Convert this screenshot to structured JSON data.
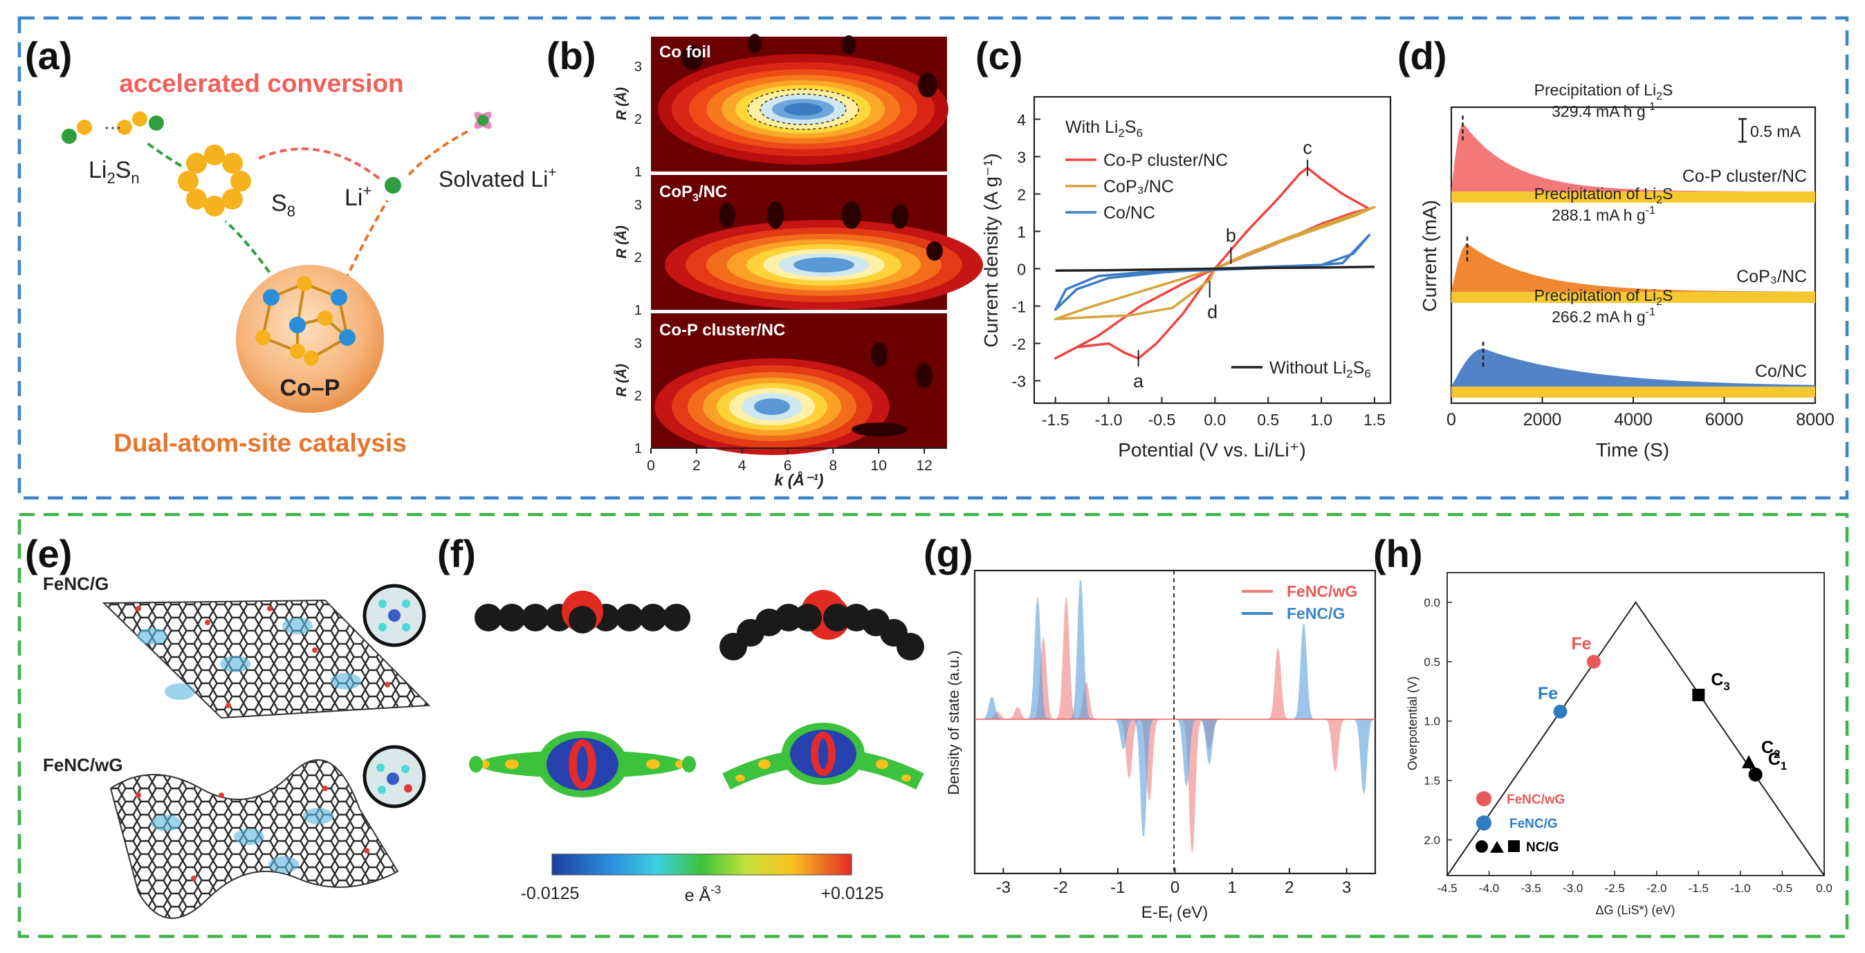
{
  "panel_labels": {
    "a": "(a)",
    "b": "(b)",
    "c": "(c)",
    "d": "(d)",
    "e": "(e)",
    "f": "(f)",
    "g": "(g)",
    "h": "(h)"
  },
  "panel_a": {
    "accelerated": "accelerated conversion",
    "li2sn_main": "Li",
    "li2sn_sub1": "2",
    "li2sn_mid": "S",
    "li2sn_sub2": "n",
    "s8_main": "S",
    "s8_sub": "8",
    "li_main": "Li",
    "li_sup": "+",
    "solvated_main": "Solvated Li",
    "solvated_sup": "+",
    "cop": "Co–P",
    "dual": "Dual-atom-site catalysis",
    "colors": {
      "red": "#f0605a",
      "orange": "#e8742c",
      "ball": "#f5b21c",
      "green": "#2e9e3e"
    }
  },
  "panel_b": {
    "sub1_label": "Co foil",
    "sub2_main": "CoP",
    "sub2_sub": "3",
    "sub2_tail": "/NC",
    "sub3_label": "Co-P cluster/NC",
    "ylabel": "R (Å)",
    "xlabel": "k (Å⁻¹)",
    "yticks": [
      "1",
      "2",
      "3"
    ],
    "xticks": [
      "0",
      "2",
      "4",
      "6",
      "8",
      "10",
      "12"
    ]
  },
  "chart_data": [
    {
      "panel": "c",
      "type": "line",
      "title_main": "With Li",
      "title_sub": "2",
      "title_tail": "S",
      "title_sub2": "6",
      "xlabel": "Potential (V vs. Li/Li⁺)",
      "ylabel": "Current density (A g⁻¹)",
      "xlim": [
        -1.7,
        1.65
      ],
      "ylim": [
        -3.6,
        4.6
      ],
      "xticks": [
        "-1.5",
        "-1.0",
        "-0.5",
        "0.0",
        "0.5",
        "1.0",
        "1.5"
      ],
      "yticks": [
        "-3",
        "-2",
        "-1",
        "0",
        "1",
        "2",
        "3",
        "4"
      ],
      "series": [
        {
          "name": "Co-P cluster/NC",
          "color": "#ee4540",
          "x": [
            -1.5,
            -1.3,
            -1.0,
            -0.85,
            -0.72,
            -0.55,
            -0.3,
            0.0,
            0.3,
            0.6,
            0.8,
            0.87,
            1.0,
            1.2,
            1.45,
            1.3,
            1.0,
            0.6,
            0.3,
            0.0,
            -0.3,
            -0.7,
            -1.1,
            -1.5
          ],
          "y": [
            -2.4,
            -2.1,
            -2.0,
            -2.25,
            -2.4,
            -2.0,
            -1.2,
            0.0,
            1.0,
            1.9,
            2.55,
            2.7,
            2.4,
            2.0,
            1.6,
            1.5,
            1.2,
            0.7,
            0.35,
            0.0,
            -0.4,
            -1.0,
            -1.8,
            -2.4
          ]
        },
        {
          "name": "CoP₃/NC",
          "color": "#d8a33a",
          "x": [
            -1.5,
            -1.2,
            -0.8,
            -0.4,
            -0.05,
            0.0,
            0.3,
            0.7,
            1.1,
            1.5,
            1.3,
            0.9,
            0.5,
            0.0,
            -0.4,
            -0.8,
            -1.2,
            -1.5
          ],
          "y": [
            -1.35,
            -1.3,
            -1.25,
            -1.05,
            -0.3,
            0.0,
            0.4,
            0.85,
            1.25,
            1.65,
            1.4,
            1.0,
            0.6,
            0.0,
            -0.35,
            -0.7,
            -1.05,
            -1.35
          ]
        },
        {
          "name": "Co/NC",
          "color": "#3a7cc4",
          "x": [
            -1.5,
            -1.3,
            -1.0,
            -0.5,
            0.0,
            0.5,
            1.0,
            1.3,
            1.45,
            1.2,
            0.8,
            0.3,
            -0.2,
            -0.7,
            -1.1,
            -1.4,
            -1.5
          ],
          "y": [
            -1.1,
            -0.55,
            -0.25,
            -0.1,
            0.0,
            0.05,
            0.1,
            0.4,
            0.9,
            0.15,
            0.05,
            0.0,
            -0.05,
            -0.1,
            -0.2,
            -0.55,
            -1.1
          ]
        },
        {
          "name": "Without Li₂S₆",
          "color": "#222222",
          "x": [
            -1.5,
            -1.0,
            -0.5,
            0.0,
            0.5,
            1.0,
            1.5
          ],
          "y": [
            -0.05,
            -0.04,
            -0.02,
            0.0,
            0.02,
            0.03,
            0.05
          ]
        }
      ],
      "legend": [
        "Co-P cluster/NC",
        "CoP₃/NC",
        "Co/NC"
      ],
      "legend2_main": "Without Li",
      "legend2_sub": "2",
      "legend2_mid": "S",
      "legend2_sub2": "6",
      "annotations": [
        {
          "text": "a",
          "x": -0.72,
          "y": -2.4
        },
        {
          "text": "b",
          "x": 0.15,
          "y": 0.35
        },
        {
          "text": "c",
          "x": 0.87,
          "y": 2.7
        },
        {
          "text": "d",
          "x": -0.05,
          "y": -0.55
        }
      ]
    },
    {
      "panel": "d",
      "type": "area",
      "xlabel": "Time (S)",
      "ylabel": "Current (mA)",
      "xlim": [
        0,
        8000
      ],
      "xticks": [
        "0",
        "2000",
        "4000",
        "6000",
        "8000"
      ],
      "scalebar": "0.5 mA",
      "series": [
        {
          "name": "Co-P cluster/NC",
          "color": "#f26a6a",
          "peak_time": 250,
          "capacity_main": "329.4 mA h g",
          "capacity_sup": "-1",
          "title_main": "Precipitation of Li",
          "title_sub": "2",
          "title_tail": "S"
        },
        {
          "name": "CoP₃/NC",
          "color": "#f07a1c",
          "peak_time": 350,
          "capacity_main": "288.1 mA h g",
          "capacity_sup": "-1",
          "title_main": "Precipitation of Li",
          "title_sub": "2",
          "title_tail": "S"
        },
        {
          "name": "Co/NC",
          "color": "#3f76c0",
          "peak_time": 700,
          "capacity_main": "266.2 mA h g",
          "capacity_sup": "-1",
          "title_main": "Precipitation of Li",
          "title_sub": "2",
          "title_tail": "S"
        }
      ],
      "baseline_color": "#f5c832"
    },
    {
      "panel": "g",
      "type": "area",
      "xlabel": "E-E",
      "xlabel_sub": "f",
      "xlabel_tail": " (eV)",
      "ylabel": "Density of state (a.u.)",
      "xlim": [
        -3.5,
        3.5
      ],
      "xticks": [
        "-3",
        "-2",
        "-1",
        "0",
        "1",
        "2",
        "3"
      ],
      "series": [
        {
          "name": "FeNC/wG",
          "color": "#f08080",
          "peaks": [
            [
              -3.1,
              0.05
            ],
            [
              -2.75,
              0.08
            ],
            [
              -2.3,
              0.55
            ],
            [
              -1.9,
              0.82
            ],
            [
              -1.55,
              0.25
            ],
            [
              -0.8,
              -0.4
            ],
            [
              -0.45,
              -0.55
            ],
            [
              0.3,
              -0.9
            ],
            [
              0.6,
              -0.2
            ],
            [
              1.8,
              0.48
            ],
            [
              2.8,
              -0.35
            ]
          ]
        },
        {
          "name": "FeNC/G",
          "color": "#5aa0dc",
          "peaks": [
            [
              -3.2,
              0.15
            ],
            [
              -2.4,
              0.82
            ],
            [
              -1.65,
              0.95
            ],
            [
              -0.9,
              -0.2
            ],
            [
              -0.55,
              -0.8
            ],
            [
              0.2,
              -0.45
            ],
            [
              0.6,
              -0.3
            ],
            [
              2.25,
              0.65
            ],
            [
              3.3,
              -0.5
            ]
          ]
        }
      ]
    },
    {
      "panel": "h",
      "type": "scatter",
      "xlabel": "ΔG (LiS*) (eV)",
      "ylabel": "Overpotential (V)",
      "xlim": [
        -4.5,
        0.0
      ],
      "ylim": [
        2.3,
        -0.25
      ],
      "xticks": [
        "-4.5",
        "-4.0",
        "-3.5",
        "-3.0",
        "-2.5",
        "-2.0",
        "-1.5",
        "-1.0",
        "-0.5",
        "0.0"
      ],
      "yticks": [
        "0.0",
        "0.5",
        "1.0",
        "1.5",
        "2.0"
      ],
      "volcano_x": [
        -4.5,
        -2.25,
        0.0
      ],
      "volcano_y": [
        2.3,
        0.0,
        2.3
      ],
      "points": [
        {
          "name": "Fe",
          "series": "FeNC/wG",
          "x": -2.75,
          "y": 0.5,
          "marker": "circle",
          "color": "#e85a5a"
        },
        {
          "name": "Fe",
          "series": "FeNC/G",
          "x": -3.15,
          "y": 0.92,
          "marker": "circle",
          "color": "#2e7cc4"
        },
        {
          "name": "C",
          "sub": "3",
          "series": "NC/G",
          "x": -1.5,
          "y": 0.78,
          "marker": "square",
          "color": "#000000"
        },
        {
          "name": "C",
          "sub": "2",
          "series": "NC/G",
          "x": -0.9,
          "y": 1.35,
          "marker": "triangle",
          "color": "#000000"
        },
        {
          "name": "C",
          "sub": "1",
          "series": "NC/G",
          "x": -0.82,
          "y": 1.45,
          "marker": "circle",
          "color": "#000000"
        }
      ],
      "legend": [
        "FeNC/wG",
        "FeNC/G",
        "NC/G"
      ]
    }
  ],
  "panel_e": {
    "top_label": "FeNC/G",
    "bottom_label": "FeNC/wG"
  },
  "panel_f": {
    "cb_min": "-0.0125",
    "cb_max": "+0.0125",
    "cb_unit_main": "e Å",
    "cb_unit_sup": "-3"
  },
  "colors": {
    "blue_border": "#3a86c8",
    "green_border": "#3fb34a"
  }
}
